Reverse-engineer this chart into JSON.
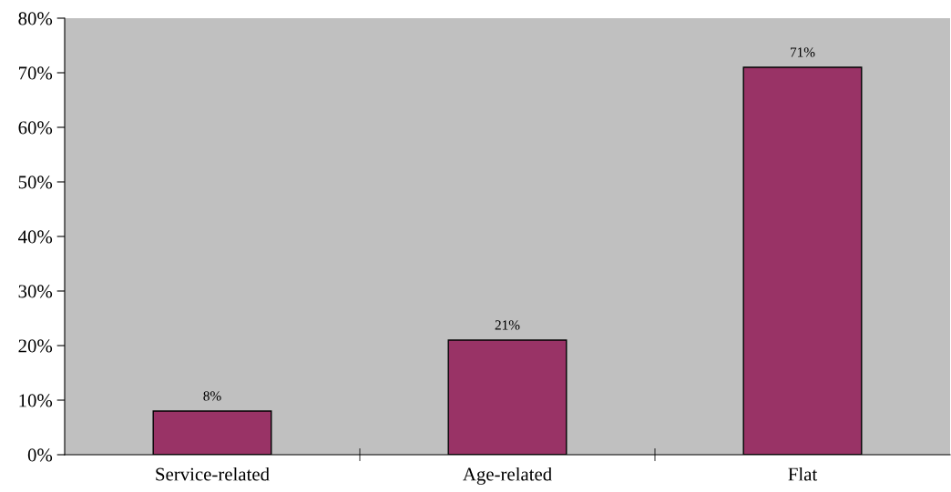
{
  "chart_data": {
    "type": "bar",
    "categories": [
      "Service-related",
      "Age-related",
      "Flat"
    ],
    "values": [
      8,
      21,
      71
    ],
    "value_labels": [
      "8%",
      "21%",
      "71%"
    ],
    "color": "#993366",
    "ylim": [
      0,
      80
    ],
    "yticks": [
      {
        "value": 0,
        "label": "0%"
      },
      {
        "value": 10,
        "label": "10%"
      },
      {
        "value": 20,
        "label": "20%"
      },
      {
        "value": 30,
        "label": "30%"
      },
      {
        "value": 40,
        "label": "40%"
      },
      {
        "value": 50,
        "label": "50%"
      },
      {
        "value": 60,
        "label": "60%"
      },
      {
        "value": 70,
        "label": "70%"
      },
      {
        "value": 80,
        "label": "80%"
      }
    ],
    "grid": false,
    "legend": false
  }
}
